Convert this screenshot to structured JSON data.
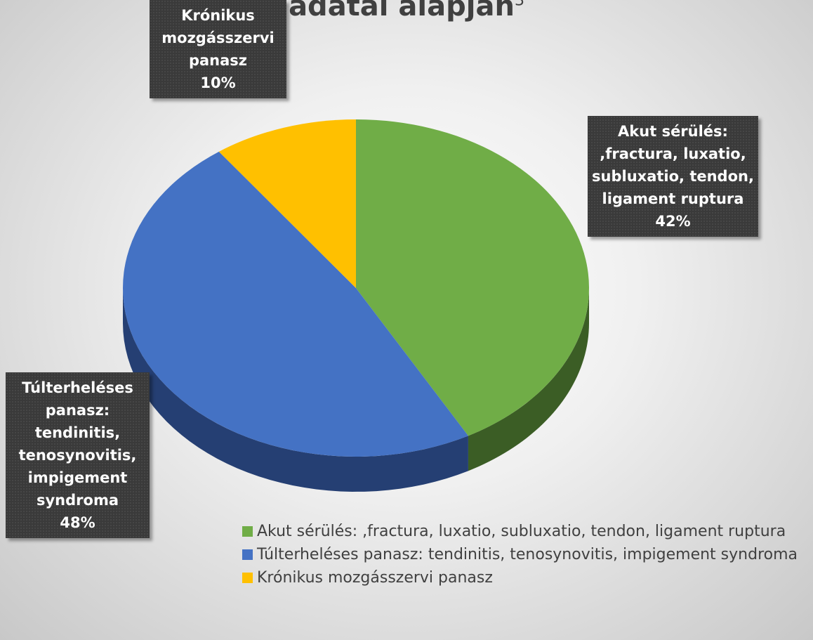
{
  "chart_data": {
    "type": "pie",
    "title": "adatai alapján",
    "title_superscript": "3",
    "categories": [
      "Akut sérülés: ,fractura, luxatio, subluxatio, tendon, ligament ruptura",
      "Túlterheléses panasz: tendinitis, tenosynovitis, impigement syndroma",
      "Krónikus mozgásszervi panasz"
    ],
    "values": [
      42,
      48,
      10
    ],
    "value_labels": [
      "42%",
      "48%",
      "10%"
    ],
    "colors": [
      "#70ad47",
      "#4472c4",
      "#ffc000"
    ],
    "side_colors": [
      "#3b5d25",
      "#253f73",
      "#a67c00"
    ],
    "legend": "bottom-right"
  }
}
